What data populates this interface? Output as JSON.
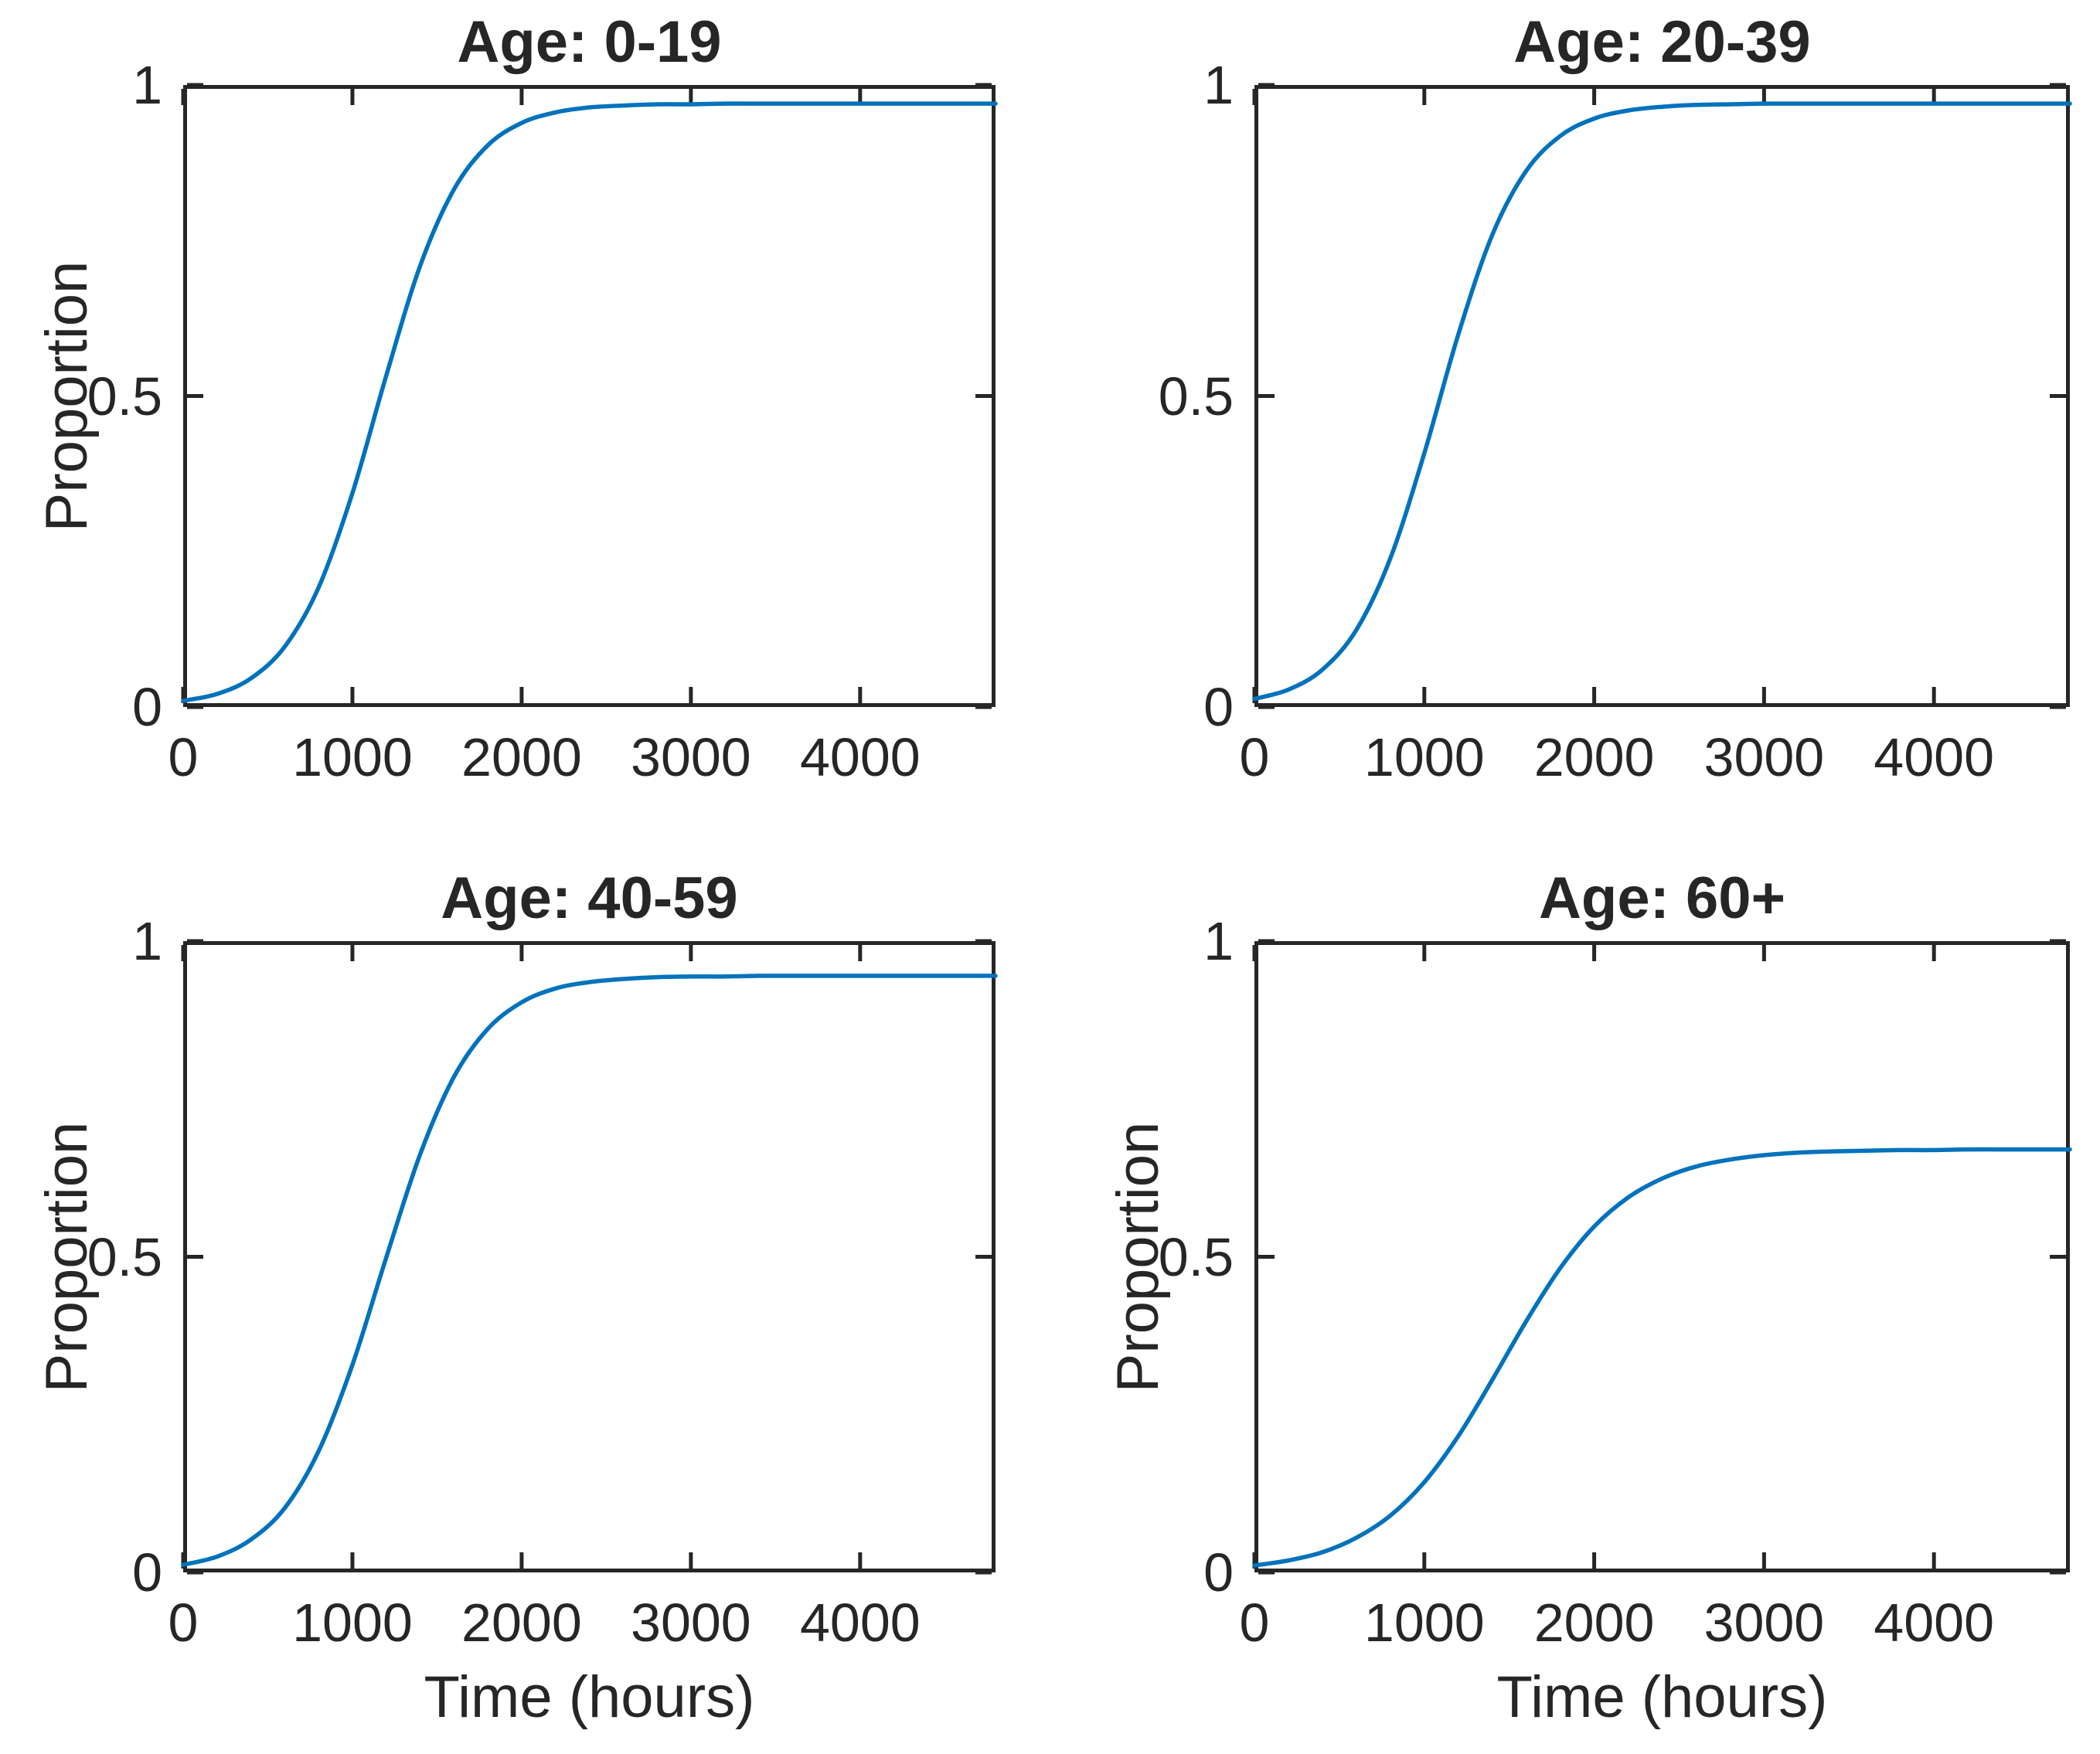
{
  "figure": {
    "background_color": "#ffffff",
    "curve_color": "#0072BD",
    "axis_color": "#262626",
    "text_color": "#262626",
    "layout": "2x2 subplot grid"
  },
  "chart_data": [
    {
      "type": "line",
      "title": "Age: 0-19",
      "xlabel": "",
      "ylabel": "Proportion",
      "xlim": [
        0,
        4800
      ],
      "ylim": [
        0,
        1
      ],
      "x_ticks": [
        0,
        1000,
        2000,
        3000,
        4000
      ],
      "x_tick_labels": [
        "0",
        "1000",
        "2000",
        "3000",
        "4000"
      ],
      "y_ticks": [
        0,
        0.5,
        1
      ],
      "y_tick_labels": [
        "0",
        "0.5",
        "1"
      ],
      "grid": false,
      "legend": false,
      "final_value": 0.97,
      "series": [
        {
          "x": [
            0,
            200,
            400,
            600,
            800,
            1000,
            1200,
            1400,
            1600,
            1800,
            2000,
            2200,
            2400,
            2600,
            2800,
            3000,
            3200,
            3400,
            3600,
            3800,
            4000,
            4200,
            4400,
            4600,
            4800
          ],
          "y": [
            0.01,
            0.021,
            0.046,
            0.097,
            0.192,
            0.344,
            0.533,
            0.709,
            0.832,
            0.903,
            0.939,
            0.956,
            0.964,
            0.967,
            0.969,
            0.969,
            0.97,
            0.97,
            0.97,
            0.97,
            0.97,
            0.97,
            0.97,
            0.97,
            0.97
          ]
        }
      ]
    },
    {
      "type": "line",
      "title": "Age: 20-39",
      "xlabel": "",
      "ylabel": "",
      "xlim": [
        0,
        4800
      ],
      "ylim": [
        0,
        1
      ],
      "x_ticks": [
        0,
        1000,
        2000,
        3000,
        4000
      ],
      "x_tick_labels": [
        "0",
        "1000",
        "2000",
        "3000",
        "4000"
      ],
      "y_ticks": [
        0,
        0.5,
        1
      ],
      "y_tick_labels": [
        "0",
        "0.5",
        "1"
      ],
      "grid": false,
      "legend": false,
      "final_value": 0.97,
      "series": [
        {
          "x": [
            0,
            200,
            400,
            600,
            800,
            1000,
            1200,
            1400,
            1600,
            1800,
            2000,
            2200,
            2400,
            2600,
            2800,
            3000,
            3200,
            3400,
            3600,
            3800,
            4000,
            4200,
            4400,
            4600,
            4800
          ],
          "y": [
            0.013,
            0.028,
            0.06,
            0.124,
            0.239,
            0.408,
            0.599,
            0.759,
            0.862,
            0.918,
            0.946,
            0.959,
            0.965,
            0.968,
            0.969,
            0.97,
            0.97,
            0.97,
            0.97,
            0.97,
            0.97,
            0.97,
            0.97,
            0.97,
            0.97
          ]
        }
      ]
    },
    {
      "type": "line",
      "title": "Age: 40-59",
      "xlabel": "Time (hours)",
      "ylabel": "Proportion",
      "xlim": [
        0,
        4800
      ],
      "ylim": [
        0,
        1
      ],
      "x_ticks": [
        0,
        1000,
        2000,
        3000,
        4000
      ],
      "x_tick_labels": [
        "0",
        "1000",
        "2000",
        "3000",
        "4000"
      ],
      "y_ticks": [
        0,
        0.5,
        1
      ],
      "y_tick_labels": [
        "0",
        "0.5",
        "1"
      ],
      "grid": false,
      "legend": false,
      "final_value": 0.945,
      "series": [
        {
          "x": [
            0,
            200,
            400,
            600,
            800,
            1000,
            1200,
            1400,
            1600,
            1800,
            2000,
            2200,
            2400,
            2600,
            2800,
            3000,
            3200,
            3400,
            3600,
            3800,
            4000,
            4200,
            4400,
            4600,
            4800
          ],
          "y": [
            0.012,
            0.025,
            0.052,
            0.102,
            0.192,
            0.329,
            0.499,
            0.662,
            0.785,
            0.861,
            0.903,
            0.925,
            0.935,
            0.94,
            0.943,
            0.944,
            0.944,
            0.945,
            0.945,
            0.945,
            0.945,
            0.945,
            0.945,
            0.945,
            0.945
          ]
        }
      ]
    },
    {
      "type": "line",
      "title": "Age: 60+",
      "xlabel": "Time (hours)",
      "ylabel": "Proportion",
      "xlim": [
        0,
        4800
      ],
      "ylim": [
        0,
        1
      ],
      "x_ticks": [
        0,
        1000,
        2000,
        3000,
        4000
      ],
      "x_tick_labels": [
        "0",
        "1000",
        "2000",
        "3000",
        "4000"
      ],
      "y_ticks": [
        0,
        0.5,
        1
      ],
      "y_tick_labels": [
        "0",
        "0.5",
        "1"
      ],
      "grid": false,
      "legend": false,
      "final_value": 0.67,
      "series": [
        {
          "x": [
            0,
            200,
            400,
            600,
            800,
            1000,
            1200,
            1400,
            1600,
            1800,
            2000,
            2200,
            2400,
            2600,
            2800,
            3000,
            3200,
            3400,
            3600,
            3800,
            4000,
            4200,
            4400,
            4600,
            4800
          ],
          "y": [
            0.011,
            0.019,
            0.032,
            0.055,
            0.09,
            0.143,
            0.216,
            0.305,
            0.398,
            0.482,
            0.548,
            0.594,
            0.624,
            0.643,
            0.654,
            0.661,
            0.665,
            0.667,
            0.668,
            0.669,
            0.669,
            0.67,
            0.67,
            0.67,
            0.67
          ]
        }
      ]
    }
  ]
}
